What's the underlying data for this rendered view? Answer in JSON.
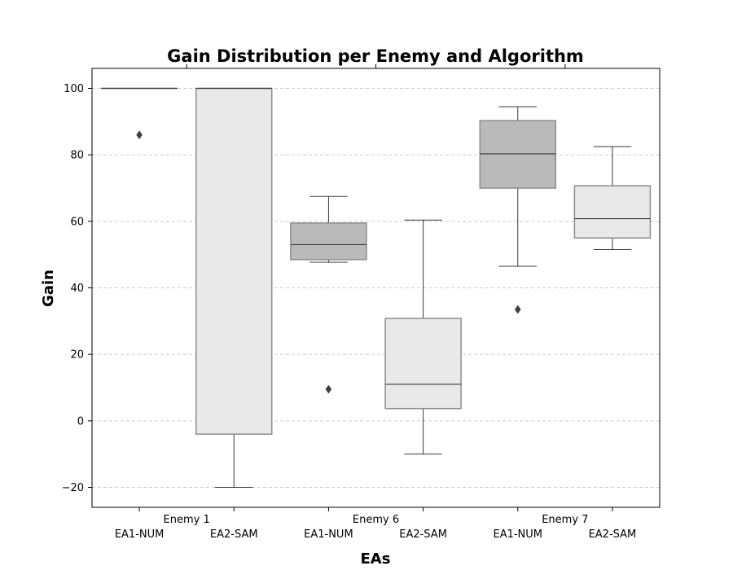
{
  "chart_data": {
    "type": "box",
    "title": "Gain Distribution per Enemy and Algorithm",
    "xlabel": "EAs",
    "ylabel": "Gain",
    "ylim": [
      -26,
      106
    ],
    "yticks": [
      -20,
      0,
      20,
      40,
      60,
      80,
      100
    ],
    "grid": true,
    "groups": [
      "Enemy 1",
      "Enemy 6",
      "Enemy 7"
    ],
    "algorithms": [
      "EA1-NUM",
      "EA2-SAM"
    ],
    "colors": {
      "EA1-NUM": "#bababa",
      "EA2-SAM": "#e9e9e9",
      "box_edge": "#8c8c8c",
      "line": "#3a3a3a",
      "grid": "#cccccc"
    },
    "boxes": [
      {
        "group": "Enemy 1",
        "algorithm": "EA1-NUM",
        "whisker_low": 100,
        "q1": 100,
        "median": 100,
        "q3": 100,
        "whisker_high": 100,
        "outliers": [
          86
        ]
      },
      {
        "group": "Enemy 1",
        "algorithm": "EA2-SAM",
        "whisker_low": -20,
        "q1": -4,
        "median": 100,
        "q3": 100,
        "whisker_high": 100,
        "outliers": []
      },
      {
        "group": "Enemy 6",
        "algorithm": "EA1-NUM",
        "whisker_low": 47.7,
        "q1": 48.5,
        "median": 53,
        "q3": 59.5,
        "whisker_high": 67.5,
        "outliers": [
          9.5
        ]
      },
      {
        "group": "Enemy 6",
        "algorithm": "EA2-SAM",
        "whisker_low": -10,
        "q1": 3.7,
        "median": 11,
        "q3": 30.8,
        "whisker_high": 60.4,
        "outliers": []
      },
      {
        "group": "Enemy 7",
        "algorithm": "EA1-NUM",
        "whisker_low": 46.5,
        "q1": 70,
        "median": 80.3,
        "q3": 90.3,
        "whisker_high": 94.5,
        "outliers": [
          33.5
        ]
      },
      {
        "group": "Enemy 7",
        "algorithm": "EA2-SAM",
        "whisker_low": 51.5,
        "q1": 55,
        "median": 60.8,
        "q3": 70.7,
        "whisker_high": 82.5,
        "outliers": []
      }
    ]
  }
}
